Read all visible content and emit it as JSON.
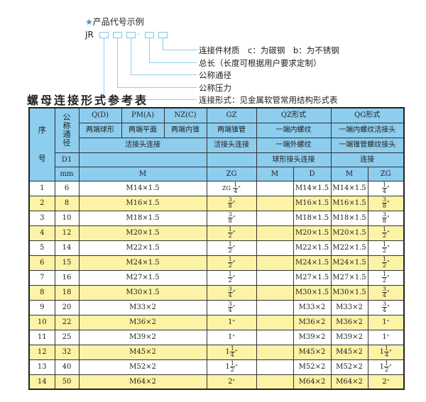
{
  "legend": {
    "title": "产品代号示例",
    "code_prefix": "JR",
    "code_dash": "-",
    "items": [
      "连接件材质　c：为碳钢　b：为不锈钢",
      "总长（长度可根据用户要求定制）",
      "公称通径",
      "公称压力",
      "连接形式：见金属软管常用结构形式表"
    ],
    "star_color": "#2a9fd6"
  },
  "table_title": "螺母连接形式参考表",
  "header": {
    "seq": "序号",
    "dn": "公称通径",
    "d1": "D1",
    "mm": "mm",
    "row1": [
      "Q(D)",
      "PM(A)",
      "NZ(C)",
      "GZ",
      "QZ形式",
      "QG形式"
    ],
    "row2": [
      "两端球形",
      "两端平面",
      "两端内锥",
      "两端锥管",
      "一端内螺纹",
      "一端内螺纹活接头"
    ],
    "row3": [
      "活接头连接",
      "活接头连接",
      "一端外螺纹",
      "一端锥管螺纹接头"
    ],
    "row4": [
      "球形接头连接",
      "连接"
    ],
    "row5": [
      "M",
      "ZG",
      "M",
      "D",
      "M",
      "ZG"
    ]
  },
  "colors": {
    "header_bg": "#8dcdee",
    "alt_row_bg": "#fdf3a6"
  },
  "rows": [
    {
      "seq": "1",
      "dn": "6",
      "m": "M14×1.5",
      "zg_prefix": "ZG",
      "zg": {
        "w": "",
        "n": "1",
        "d": "4"
      },
      "qz_m": "",
      "qz_d": "M14×1.5",
      "qg_m": "M14×1.5",
      "qg_zg": {
        "w": "",
        "n": "1",
        "d": "4"
      }
    },
    {
      "seq": "2",
      "dn": "8",
      "m": "M16×1.5",
      "zg": {
        "w": "",
        "n": "3",
        "d": "8"
      },
      "qz_m": "",
      "qz_d": "M16×1.5",
      "qg_m": "M16×1.5",
      "qg_zg": {
        "w": "",
        "n": "3",
        "d": "8"
      }
    },
    {
      "seq": "3",
      "dn": "10",
      "m": "M18×1.5",
      "zg": {
        "w": "",
        "n": "3",
        "d": "8"
      },
      "qz_m": "",
      "qz_d": "M18×1.5",
      "qg_m": "M18×1.5",
      "qg_zg": {
        "w": "",
        "n": "3",
        "d": "8"
      }
    },
    {
      "seq": "4",
      "dn": "12",
      "m": "M20×1.5",
      "zg": {
        "w": "",
        "n": "1",
        "d": "2"
      },
      "qz_m": "",
      "qz_d": "M20×1.5",
      "qg_m": "M20×1.5",
      "qg_zg": {
        "w": "",
        "n": "1",
        "d": "2"
      }
    },
    {
      "seq": "5",
      "dn": "14",
      "m": "M22×1.5",
      "zg": {
        "w": "",
        "n": "1",
        "d": "2"
      },
      "qz_m": "",
      "qz_d": "M22×1.5",
      "qg_m": "M22×1.5",
      "qg_zg": {
        "w": "",
        "n": "1",
        "d": "2"
      }
    },
    {
      "seq": "6",
      "dn": "15",
      "m": "M24×1.5",
      "zg": {
        "w": "",
        "n": "1",
        "d": "2"
      },
      "qz_m": "",
      "qz_d": "M24×1.5",
      "qg_m": "M24×1.5",
      "qg_zg": {
        "w": "",
        "n": "1",
        "d": "2"
      }
    },
    {
      "seq": "7",
      "dn": "16",
      "m": "M27×1.5",
      "zg": {
        "w": "",
        "n": "1",
        "d": "2"
      },
      "qz_m": "",
      "qz_d": "M27×1.5",
      "qg_m": "M27×1.5",
      "qg_zg": {
        "w": "",
        "n": "1",
        "d": "2"
      }
    },
    {
      "seq": "8",
      "dn": "18",
      "m": "M30×1.5",
      "zg": {
        "w": "",
        "n": "3",
        "d": "4"
      },
      "qz_m": "",
      "qz_d": "M30×1.5",
      "qg_m": "M30×1.5",
      "qg_zg": {
        "w": "",
        "n": "3",
        "d": "4"
      }
    },
    {
      "seq": "9",
      "dn": "20",
      "m": "M33×2",
      "zg": {
        "w": "",
        "n": "3",
        "d": "4"
      },
      "qz_m": "",
      "qz_d": "M33×2",
      "qg_m": "M33×2",
      "qg_zg": {
        "w": "",
        "n": "3",
        "d": "4"
      }
    },
    {
      "seq": "10",
      "dn": "22",
      "m": "M36×2",
      "zg": {
        "w": "1",
        "n": "",
        "d": ""
      },
      "qz_m": "",
      "qz_d": "M36×2",
      "qg_m": "M36×2",
      "qg_zg": {
        "w": "1",
        "n": "",
        "d": ""
      }
    },
    {
      "seq": "11",
      "dn": "25",
      "m": "M39×2",
      "zg": {
        "w": "1",
        "n": "",
        "d": ""
      },
      "qz_m": "",
      "qz_d": "M39×2",
      "qg_m": "M39×2",
      "qg_zg": {
        "w": "1",
        "n": "",
        "d": ""
      }
    },
    {
      "seq": "12",
      "dn": "32",
      "m": "M45×2",
      "zg": {
        "w": "1",
        "n": "1",
        "d": "4"
      },
      "qz_m": "",
      "qz_d": "M45×2",
      "qg_m": "M45×2",
      "qg_zg": {
        "w": "1",
        "n": "1",
        "d": "4"
      }
    },
    {
      "seq": "13",
      "dn": "40",
      "m": "M52×2",
      "zg": {
        "w": "1",
        "n": "1",
        "d": "2"
      },
      "qz_m": "",
      "qz_d": "M52×2",
      "qg_m": "M52×2",
      "qg_zg": {
        "w": "1",
        "n": "1",
        "d": "2"
      }
    },
    {
      "seq": "14",
      "dn": "50",
      "m": "M64×2",
      "zg": {
        "w": "2",
        "n": "",
        "d": ""
      },
      "qz_m": "",
      "qz_d": "M64×2",
      "qg_m": "M64×2",
      "qg_zg": {
        "w": "2",
        "n": "",
        "d": ""
      }
    }
  ]
}
